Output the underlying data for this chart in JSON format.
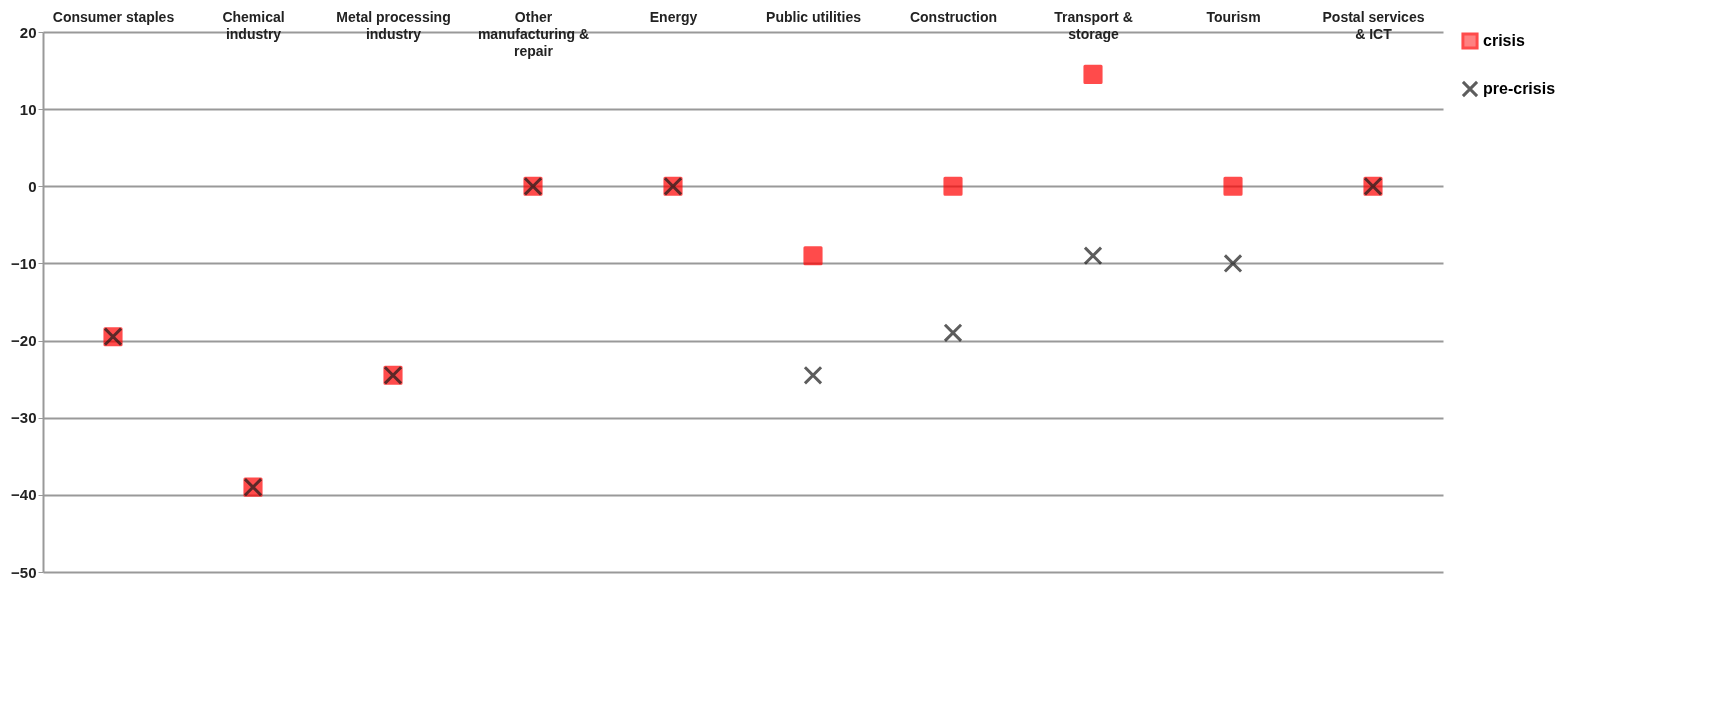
{
  "chart_data": {
    "type": "scatter",
    "categories": [
      "Consumer staples",
      "Chemical industry",
      "Metal processing industry",
      "Other manufacturing & repair",
      "Energy",
      "Public utilities",
      "Construction",
      "Transport & storage",
      "Tourism",
      "Postal services & ICT"
    ],
    "series": [
      {
        "name": "crisis",
        "color": "#ff0000",
        "marker": "square",
        "values": [
          -19.5,
          -39,
          -24.5,
          0,
          0,
          -9,
          0,
          14.5,
          0,
          0
        ]
      },
      {
        "name": "pre-crisis",
        "color": "#1a1a1a",
        "marker": "cross",
        "values": [
          -19.5,
          -39,
          -24.5,
          0,
          0,
          -24.5,
          -19,
          -9,
          -10,
          0
        ]
      }
    ],
    "ylim": [
      -50,
      20
    ],
    "yticks": [
      -50,
      -40,
      -30,
      -20,
      -10,
      0,
      10,
      20
    ],
    "grid": "y",
    "legend": "right"
  }
}
